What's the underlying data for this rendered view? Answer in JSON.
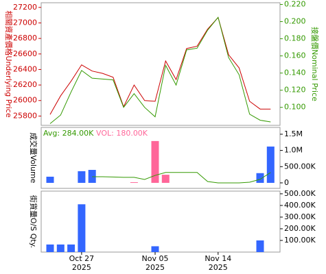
{
  "chart_data": [
    {
      "type": "line",
      "y_label": "相關資產價格Underlying Price",
      "y2_label": "接盤價Nominal Price",
      "ylim": [
        25680,
        27260
      ],
      "yticks": [
        25800,
        26000,
        26200,
        26400,
        26600,
        26800,
        27000,
        27200
      ],
      "y2lim": [
        0.079,
        0.222
      ],
      "y2ticks": [
        {
          "value": 0.1,
          "label": "0.100"
        },
        {
          "value": 0.12,
          "label": "0.120"
        },
        {
          "value": 0.14,
          "label": "0.140"
        },
        {
          "value": 0.16,
          "label": "0.160"
        },
        {
          "value": 0.18,
          "label": "0.180"
        },
        {
          "value": 0.2,
          "label": "0.200"
        },
        {
          "value": 0.22,
          "label": "0.220"
        }
      ],
      "series": [
        {
          "color": "#cc0000",
          "axis": "y",
          "values": [
            25820,
            26060,
            26250,
            26460,
            26380,
            26350,
            26300,
            25920,
            26200,
            26000,
            25990,
            26510,
            26270,
            26670,
            26700,
            26920,
            27070,
            26590,
            26420,
            25990,
            25890,
            25890
          ]
        },
        {
          "color": "#339900",
          "axis": "y2",
          "values": [
            0.081,
            0.091,
            0.118,
            0.143,
            0.134,
            0.133,
            0.132,
            0.1,
            0.116,
            0.1,
            0.089,
            0.149,
            0.126,
            0.167,
            0.169,
            0.19,
            0.205,
            0.158,
            0.138,
            0.092,
            0.085,
            0.083
          ]
        }
      ]
    },
    {
      "type": "bar",
      "y_label": "成交量Volume",
      "avg_label": "Avg: 284.00K",
      "vol_label": "VOL: 180.00K",
      "ylim": [
        -170000,
        1710000
      ],
      "yticks": [
        0,
        {
          "value": 500000,
          "label": "500.00K"
        },
        {
          "value": 1000000,
          "label": "1.0M"
        },
        {
          "value": 1500000,
          "label": "1.5M"
        }
      ],
      "series": [
        {
          "colors": [
            "#3366ff",
            "#3366ff",
            "#3366ff",
            "#3366ff",
            "#3366ff",
            "#3366ff",
            "#3366ff",
            "#3366ff",
            "#ff6699",
            "#3366ff",
            "#ff6699",
            "#ff6699",
            "#3366ff",
            "#3366ff",
            "#3366ff",
            "#3366ff",
            "#3366ff",
            "#3366ff",
            "#3366ff",
            "#3366ff",
            "#3366ff",
            "#3366ff"
          ],
          "values": [
            190000,
            0,
            0,
            360000,
            400000,
            0,
            0,
            0,
            20000,
            0,
            1290000,
            250000,
            0,
            0,
            0,
            0,
            0,
            0,
            0,
            0,
            300000,
            1120000
          ]
        },
        {
          "type": "line",
          "color": "#339900",
          "values": [
            null,
            null,
            null,
            null,
            190000,
            190000,
            180000,
            170000,
            170000,
            105000,
            230000,
            320000,
            320000,
            320000,
            320000,
            40000,
            0,
            0,
            0,
            20000,
            110000,
            320000
          ]
        }
      ]
    },
    {
      "type": "bar",
      "y_label": "街貨量O/S Qty.",
      "color": "#3366ff",
      "ylim": [
        0,
        523000
      ],
      "yticks": [
        {
          "value": 100000,
          "label": "100.00K"
        },
        {
          "value": 200000,
          "label": "200.00K"
        },
        {
          "value": 300000,
          "label": "300.00K"
        },
        {
          "value": 400000,
          "label": "400.00K"
        },
        {
          "value": 500000,
          "label": "500.00K"
        }
      ],
      "categories": [
        null,
        null,
        null,
        [
          "Oct 27",
          "2025"
        ],
        null,
        null,
        null,
        null,
        null,
        null,
        [
          "Nov 05",
          "2025"
        ],
        null,
        null,
        null,
        null,
        null,
        [
          "Nov 14",
          "2025"
        ],
        null,
        null,
        null,
        null,
        null
      ],
      "values": [
        65000,
        65000,
        65000,
        410000,
        0,
        0,
        0,
        0,
        0,
        0,
        50000,
        0,
        0,
        0,
        0,
        0,
        0,
        0,
        0,
        0,
        100000,
        0
      ]
    }
  ]
}
